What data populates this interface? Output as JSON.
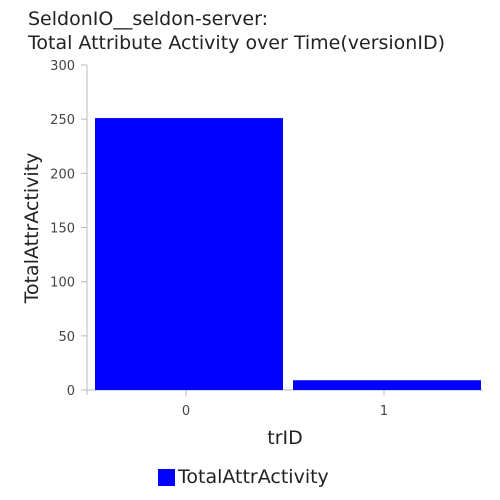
{
  "chart_data": {
    "type": "bar",
    "title": [
      "SeldonIO__seldon-server:",
      "Total Attribute Activity over Time(versionID)"
    ],
    "xlabel": "trID",
    "ylabel": "TotalAttrActivity",
    "categories": [
      "0",
      "1"
    ],
    "series": [
      {
        "name": "TotalAttrActivity",
        "values": [
          251,
          9
        ],
        "color": "#0000ff"
      }
    ],
    "ylim": [
      0,
      300
    ],
    "yticks": [
      0,
      50,
      100,
      150,
      200,
      250,
      300
    ],
    "grid": false,
    "legend_position": "bottom"
  }
}
